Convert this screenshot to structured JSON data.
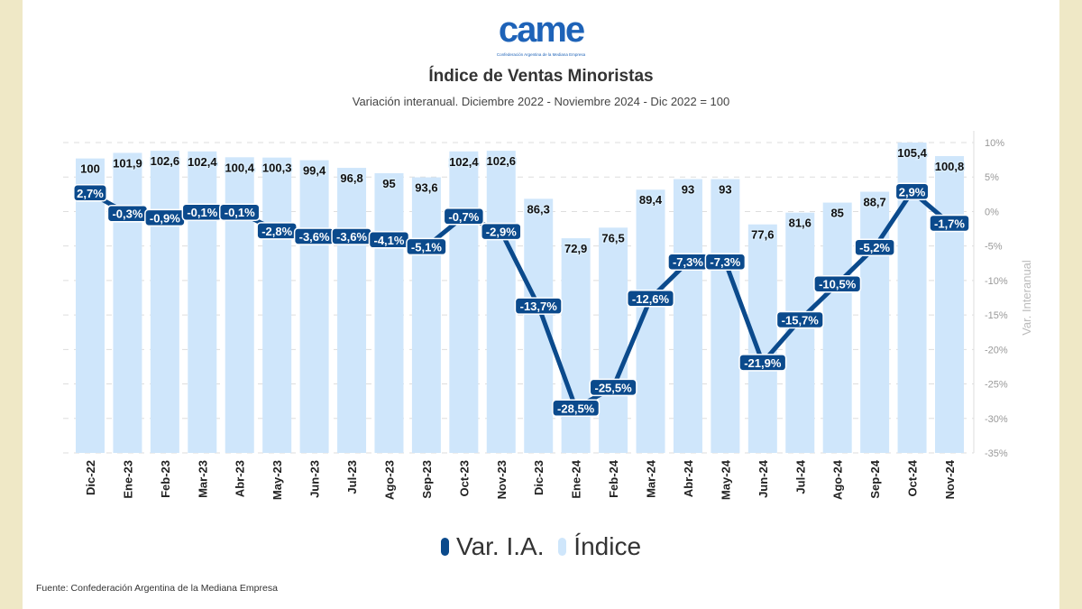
{
  "logo": {
    "word": "came",
    "subtitle": "Confederación Argentina de la Mediana Empresa"
  },
  "chart_data": {
    "type": "bar+line",
    "title": "Índice de Ventas Minoristas",
    "subtitle": "Variación interanual. Diciembre 2022 - Noviembre 2024 - Dic 2022 = 100",
    "categories": [
      "Dic-22",
      "Ene-23",
      "Feb-23",
      "Mar-23",
      "Abr-23",
      "May-23",
      "Jun-23",
      "Jul-23",
      "Ago-23",
      "Sep-23",
      "Oct-23",
      "Nov-23",
      "Dic-23",
      "Ene-24",
      "Feb-24",
      "Mar-24",
      "Abr-24",
      "May-24",
      "Jun-24",
      "Jul-24",
      "Ago-24",
      "Sep-24",
      "Oct-24",
      "Nov-24"
    ],
    "series": [
      {
        "name": "Índice",
        "type": "bar",
        "color": "#cfe6fb",
        "values": [
          100,
          101.9,
          102.6,
          102.4,
          100.4,
          100.3,
          99.4,
          96.8,
          95,
          93.6,
          102.4,
          102.6,
          86.3,
          72.9,
          76.5,
          89.4,
          93,
          93,
          77.6,
          81.6,
          85,
          88.7,
          105.4,
          100.8
        ],
        "labels": [
          "100",
          "101,9",
          "102,6",
          "102,4",
          "100,4",
          "100,3",
          "99,4",
          "96,8",
          "95",
          "93,6",
          "102,4",
          "102,6",
          "86,3",
          "72,9",
          "76,5",
          "89,4",
          "93",
          "93",
          "77,6",
          "81,6",
          "85",
          "88,7",
          "105,4",
          "100,8"
        ]
      },
      {
        "name": "Var. I.A.",
        "type": "line",
        "color": "#0b4a8c",
        "values": [
          2.7,
          -0.3,
          -0.9,
          -0.1,
          -0.1,
          -2.8,
          -3.6,
          -3.6,
          -4.1,
          -5.1,
          -0.7,
          -2.9,
          -13.7,
          -28.5,
          -25.5,
          -12.6,
          -7.3,
          -7.3,
          -21.9,
          -15.7,
          -10.5,
          -5.2,
          2.9,
          -1.7
        ],
        "labels": [
          "2,7%",
          "-0,3%",
          "-0,9%",
          "-0,1%",
          "-0,1%",
          "-2,8%",
          "-3,6%",
          "-3,6%",
          "-4,1%",
          "-5,1%",
          "-0,7%",
          "-2,9%",
          "-13,7%",
          "-28,5%",
          "-25,5%",
          "-12,6%",
          "-7,3%",
          "-7,3%",
          "-21,9%",
          "-15,7%",
          "-10,5%",
          "-5,2%",
          "2,9%",
          "-1,7%"
        ]
      }
    ],
    "y2label": "Var. Interanual",
    "y2lim": [
      -35,
      10
    ],
    "y2ticks": [
      "10%",
      "5%",
      "0%",
      "-5%",
      "-10%",
      "-15%",
      "-20%",
      "-25%",
      "-30%",
      "-35%"
    ],
    "y2tick_values": [
      10,
      5,
      0,
      -5,
      -10,
      -15,
      -20,
      -25,
      -30,
      -35
    ],
    "bar_ylim": [
      0,
      105.4
    ],
    "grid": true,
    "legend": {
      "position": "bottom-center",
      "items": [
        "Var. I.A.",
        "Índice"
      ]
    }
  },
  "source": "Fuente: Confederación Argentina de la Mediana Empresa"
}
